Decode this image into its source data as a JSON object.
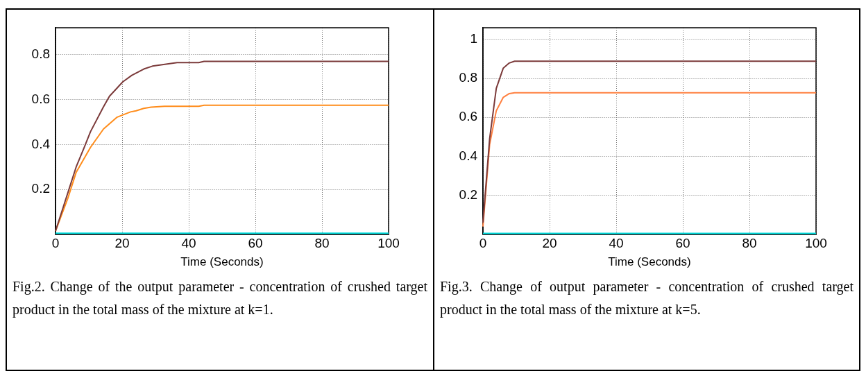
{
  "chart_data": [
    {
      "type": "line",
      "xlabel": "Time (Seconds)",
      "xlim": [
        0,
        100
      ],
      "xticks": [
        0,
        20,
        40,
        60,
        80,
        100
      ],
      "ylim": [
        0,
        0.92
      ],
      "yticks": [
        0.2,
        0.4,
        0.6,
        0.8
      ],
      "grid": true,
      "marker": "none",
      "series": [
        {
          "color": "#7b3a3a",
          "x": [
            0,
            6.2,
            8.7,
            10.5,
            14.4,
            16.2,
            20.2,
            22.9,
            26.5,
            29.1,
            33.2,
            36.5,
            43,
            44.6,
            100
          ],
          "values": [
            0.014,
            0.3,
            0.39,
            0.457,
            0.568,
            0.615,
            0.679,
            0.708,
            0.736,
            0.749,
            0.758,
            0.765,
            0.765,
            0.77,
            0.77
          ]
        },
        {
          "color": "#ff8c1a",
          "x": [
            0,
            3.7,
            6.2,
            10.5,
            14.4,
            18.4,
            22.5,
            24.2,
            26.5,
            28.7,
            32.7,
            43,
            44.6,
            100
          ],
          "values": [
            0.014,
            0.16,
            0.276,
            0.387,
            0.469,
            0.521,
            0.545,
            0.55,
            0.561,
            0.566,
            0.57,
            0.57,
            0.575,
            0.575
          ]
        },
        {
          "color": "#00e0e0",
          "x": [
            0,
            100
          ],
          "values": [
            0.005,
            0.005
          ]
        }
      ],
      "annotations": [
        "Fig.2. Change of the output parameter - concentration of crushed target product in the total mass of the mixture at k=1."
      ]
    },
    {
      "type": "line",
      "xlabel": "Time (Seconds)",
      "xlim": [
        0,
        100
      ],
      "xticks": [
        0,
        20,
        40,
        60,
        80,
        100
      ],
      "ylim": [
        0,
        1.06
      ],
      "yticks": [
        0.2,
        0.4,
        0.6,
        0.8,
        1
      ],
      "grid": true,
      "marker": "none",
      "series": [
        {
          "color": "#7b3a3a",
          "x": [
            0,
            2,
            4,
            6.1,
            7.9,
            9.5,
            100
          ],
          "values": [
            0.06,
            0.49,
            0.749,
            0.853,
            0.879,
            0.888,
            0.888
          ]
        },
        {
          "color": "#ff8040",
          "x": [
            0,
            2,
            4,
            6.1,
            7.9,
            9.5,
            100
          ],
          "values": [
            0.04,
            0.46,
            0.634,
            0.703,
            0.722,
            0.726,
            0.726
          ]
        },
        {
          "color": "#00e0e0",
          "x": [
            0,
            100
          ],
          "values": [
            0.005,
            0.005
          ]
        }
      ],
      "annotations": [
        "Fig.3. Change of output parameter - concentration of crushed target product in the total mass of the mixture at k=5."
      ]
    }
  ]
}
